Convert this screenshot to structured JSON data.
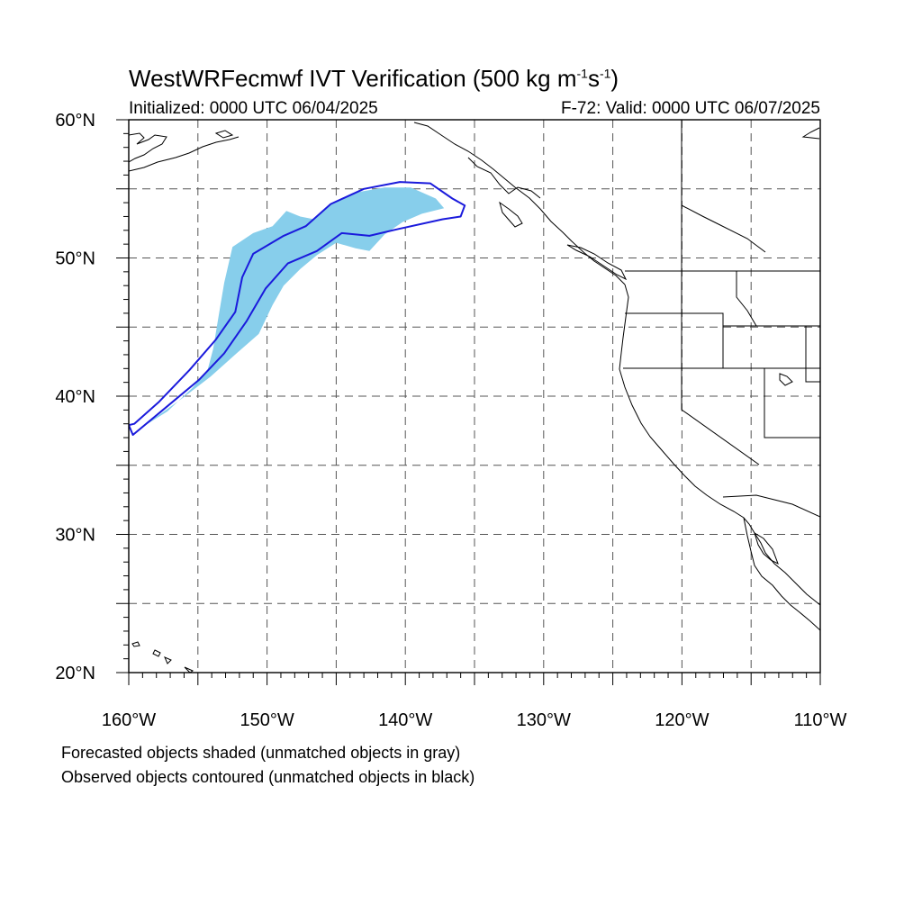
{
  "title": {
    "prefix": "WestWRFecmwf IVT Verification (500 kg m",
    "exp1": "-1",
    "mid": "s",
    "exp2": "-1",
    "suffix": ")"
  },
  "initialized": "Initialized: 0000 UTC 06/04/2025",
  "valid": "F-72: Valid: 0000 UTC 06/07/2025",
  "notes": {
    "forecast": "Forecasted objects shaded (unmatched objects in gray)",
    "observed": "Observed objects contoured (unmatched objects in black)"
  },
  "map": {
    "lon_range": [
      -160,
      -110
    ],
    "lat_range": [
      20,
      60
    ],
    "lon_ticks": [
      {
        "lon": -160,
        "label": "160°W"
      },
      {
        "lon": -150,
        "label": "150°W"
      },
      {
        "lon": -140,
        "label": "140°W"
      },
      {
        "lon": -130,
        "label": "130°W"
      },
      {
        "lon": -120,
        "label": "120°W"
      },
      {
        "lon": -110,
        "label": "110°W"
      }
    ],
    "lat_ticks": [
      {
        "lat": 60,
        "label": "60°N"
      },
      {
        "lat": 50,
        "label": "50°N"
      },
      {
        "lat": 40,
        "label": "40°N"
      },
      {
        "lat": 30,
        "label": "30°N"
      },
      {
        "lat": 20,
        "label": "20°N"
      }
    ],
    "grid_lon": [
      -155,
      -150,
      -145,
      -140,
      -135,
      -130,
      -125,
      -120,
      -115
    ],
    "grid_lat": [
      25,
      30,
      35,
      40,
      45,
      50,
      55
    ],
    "colors": {
      "forecast_fill": "#87ceeb",
      "observed_contour": "#1a1adc",
      "coast": "#000000",
      "grid": "#555555"
    },
    "forecast_object": [
      [
        -158.8,
        37.9
      ],
      [
        -157.2,
        38.9
      ],
      [
        -155.4,
        40.6
      ],
      [
        -154.3,
        41.9
      ],
      [
        -153.9,
        43.4
      ],
      [
        -153.5,
        45.8
      ],
      [
        -153.1,
        48.2
      ],
      [
        -152.5,
        50.8
      ],
      [
        -151.0,
        51.8
      ],
      [
        -149.6,
        52.3
      ],
      [
        -148.6,
        53.4
      ],
      [
        -147.6,
        53.0
      ],
      [
        -146.6,
        52.8
      ],
      [
        -145.4,
        53.9
      ],
      [
        -143.8,
        54.7
      ],
      [
        -141.5,
        55.1
      ],
      [
        -139.6,
        55.1
      ],
      [
        -137.8,
        54.3
      ],
      [
        -137.2,
        53.6
      ],
      [
        -138.8,
        53.2
      ],
      [
        -140.2,
        52.6
      ],
      [
        -141.5,
        51.7
      ],
      [
        -142.6,
        50.5
      ],
      [
        -143.6,
        50.7
      ],
      [
        -145.0,
        51.1
      ],
      [
        -146.4,
        50.2
      ],
      [
        -147.6,
        49.2
      ],
      [
        -148.8,
        48.0
      ],
      [
        -149.6,
        46.6
      ],
      [
        -150.6,
        44.5
      ],
      [
        -152.2,
        43.1
      ],
      [
        -154.1,
        41.4
      ],
      [
        -156.2,
        39.8
      ],
      [
        -158.3,
        38.3
      ]
    ],
    "observed_object": [
      [
        -159.6,
        38.0
      ],
      [
        -157.8,
        39.6
      ],
      [
        -155.6,
        41.9
      ],
      [
        -153.7,
        44.1
      ],
      [
        -152.3,
        46.1
      ],
      [
        -151.8,
        48.6
      ],
      [
        -151.0,
        50.3
      ],
      [
        -148.8,
        51.6
      ],
      [
        -147.2,
        52.3
      ],
      [
        -145.4,
        53.9
      ],
      [
        -143.0,
        55.0
      ],
      [
        -140.4,
        55.5
      ],
      [
        -138.2,
        55.4
      ],
      [
        -136.6,
        54.3
      ],
      [
        -135.7,
        53.8
      ],
      [
        -136.0,
        53.0
      ],
      [
        -137.3,
        52.8
      ],
      [
        -140.5,
        52.1
      ],
      [
        -142.6,
        51.6
      ],
      [
        -144.6,
        51.8
      ],
      [
        -146.4,
        50.5
      ],
      [
        -148.5,
        49.6
      ],
      [
        -150.1,
        47.8
      ],
      [
        -151.5,
        45.4
      ],
      [
        -153.1,
        43.1
      ],
      [
        -154.9,
        41.2
      ],
      [
        -157.3,
        39.2
      ],
      [
        -159.7,
        37.2
      ],
      [
        -160.0,
        37.9
      ]
    ]
  }
}
